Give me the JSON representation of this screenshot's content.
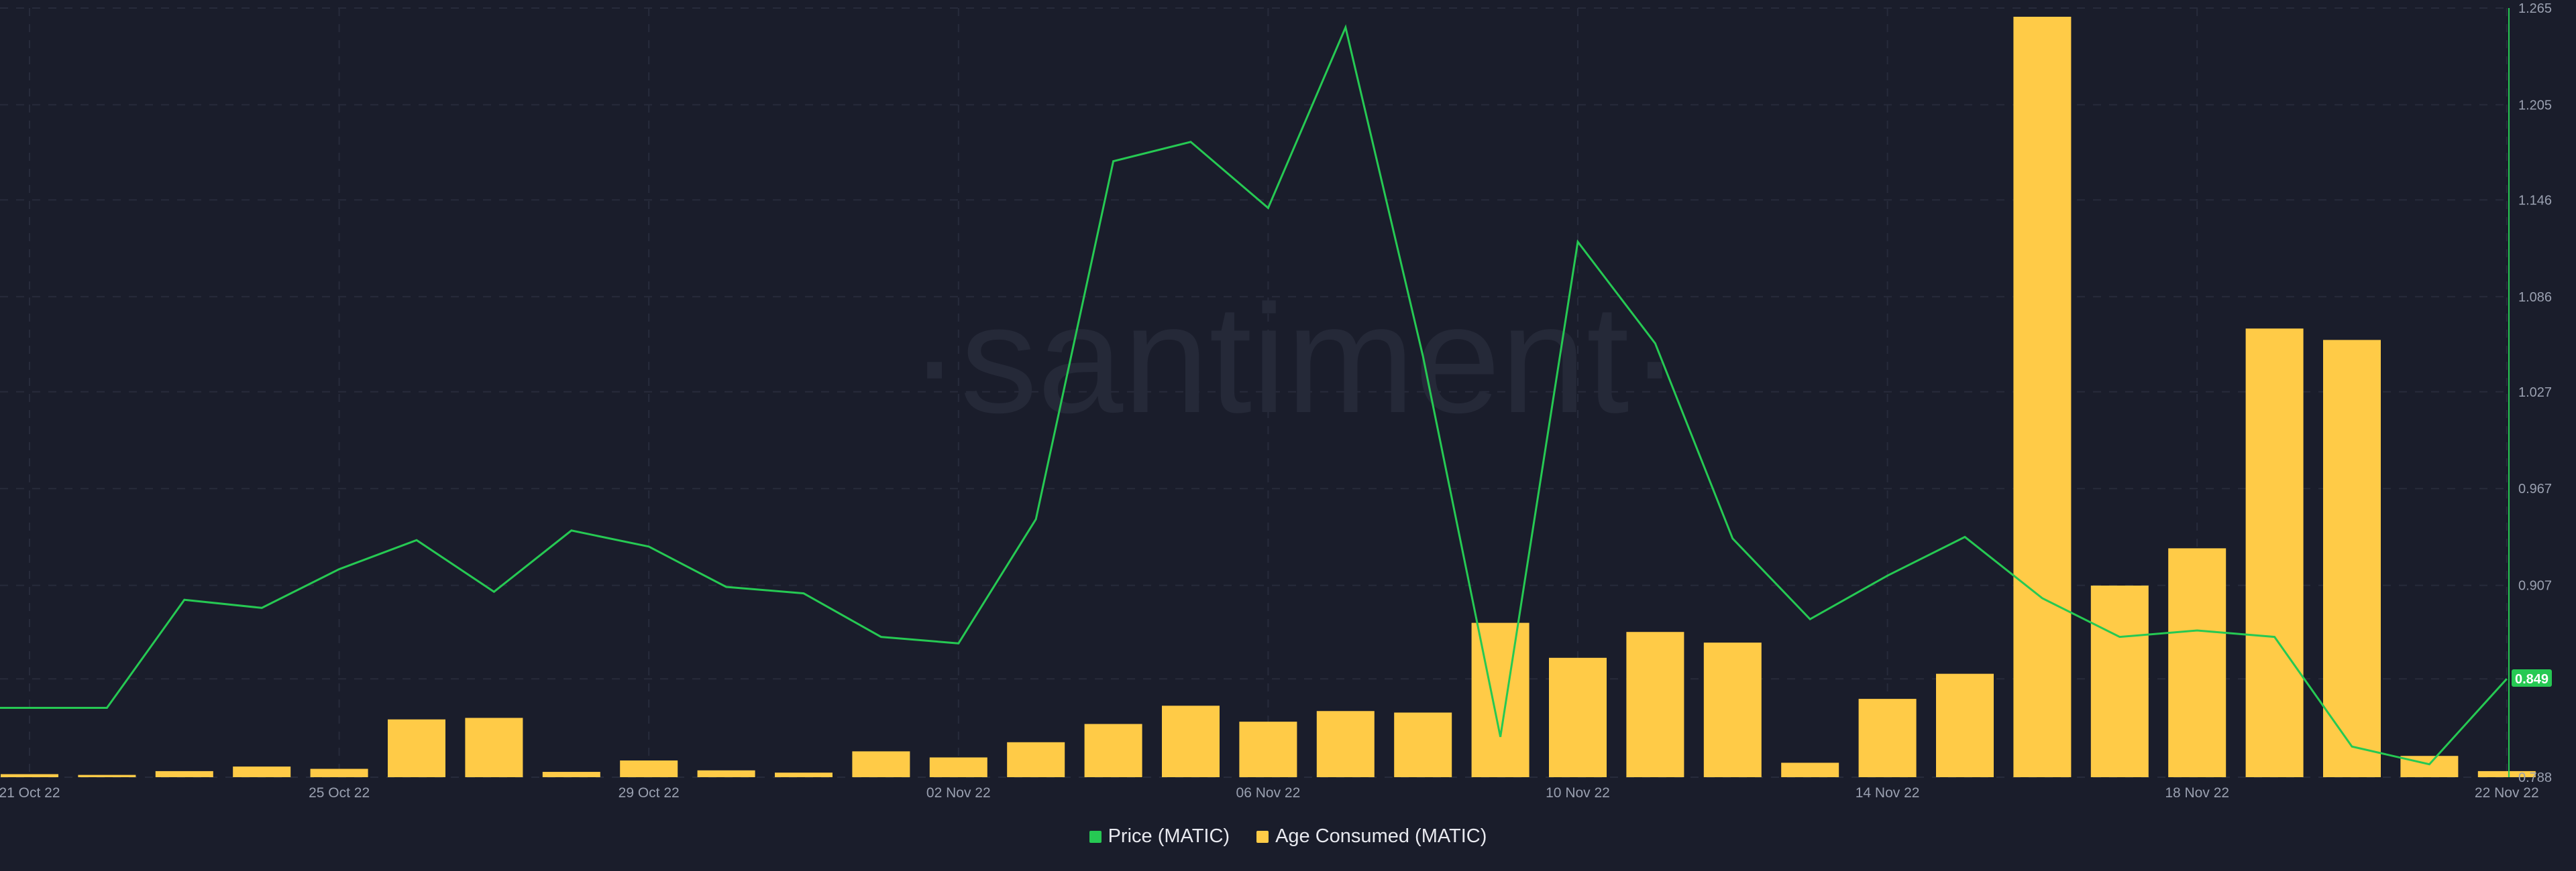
{
  "chart_data": {
    "type": "bar+line",
    "watermark": "·santiment·",
    "x": [
      "21 Oct 22",
      "22 Oct 22",
      "23 Oct 22",
      "24 Oct 22",
      "25 Oct 22",
      "26 Oct 22",
      "27 Oct 22",
      "28 Oct 22",
      "29 Oct 22",
      "30 Oct 22",
      "31 Oct 22",
      "01 Nov 22",
      "02 Nov 22",
      "03 Nov 22",
      "04 Nov 22",
      "05 Nov 22",
      "06 Nov 22",
      "07 Nov 22",
      "08 Nov 22",
      "09 Nov 22",
      "10 Nov 22",
      "11 Nov 22",
      "12 Nov 22",
      "13 Nov 22",
      "14 Nov 22",
      "15 Nov 22",
      "16 Nov 22",
      "17 Nov 22",
      "18 Nov 22",
      "19 Nov 22",
      "20 Nov 22",
      "21 Nov 22",
      "22 Nov 22"
    ],
    "x_tick_labels": [
      "21 Oct 22",
      "25 Oct 22",
      "29 Oct 22",
      "02 Nov 22",
      "06 Nov 22",
      "10 Nov 22",
      "14 Nov 22",
      "18 Nov 22",
      "22 Nov 22"
    ],
    "y_right_ticks": [
      "1.265",
      "1.205",
      "1.146",
      "1.086",
      "1.027",
      "0.967",
      "0.907",
      "0.849",
      "0.788"
    ],
    "y_right_range": [
      0.788,
      1.265
    ],
    "current_price_label": "0.849",
    "grid": true,
    "legend_position": "bottom-center",
    "series": [
      {
        "name": "Price (MATIC)",
        "type": "line",
        "color": "#26c953",
        "values": [
          0.831,
          0.831,
          0.898,
          0.893,
          0.917,
          0.935,
          0.903,
          0.941,
          0.931,
          0.906,
          0.902,
          0.875,
          0.871,
          0.948,
          1.17,
          1.182,
          1.141,
          1.253,
          1.049,
          0.813,
          1.12,
          1.057,
          0.936,
          0.886,
          0.913,
          0.937,
          0.899,
          0.875,
          0.879,
          0.875,
          0.807,
          0.796,
          0.849
        ]
      },
      {
        "name": "Age Consumed (MATIC)",
        "type": "bar",
        "color": "#ffcb47",
        "values": [
          0.4,
          0.3,
          0.8,
          1.4,
          1.1,
          7.6,
          7.8,
          0.7,
          2.2,
          0.9,
          0.6,
          3.4,
          2.6,
          4.6,
          7.0,
          9.4,
          7.3,
          8.7,
          8.5,
          20.3,
          15.7,
          19.1,
          17.7,
          1.9,
          10.3,
          13.6,
          100,
          25.2,
          30.1,
          59.0,
          57.5,
          2.8,
          0.8
        ]
      }
    ]
  },
  "legend": [
    {
      "label": "Price (MATIC)",
      "color": "#26c953"
    },
    {
      "label": "Age Consumed (MATIC)",
      "color": "#ffcb47"
    }
  ]
}
